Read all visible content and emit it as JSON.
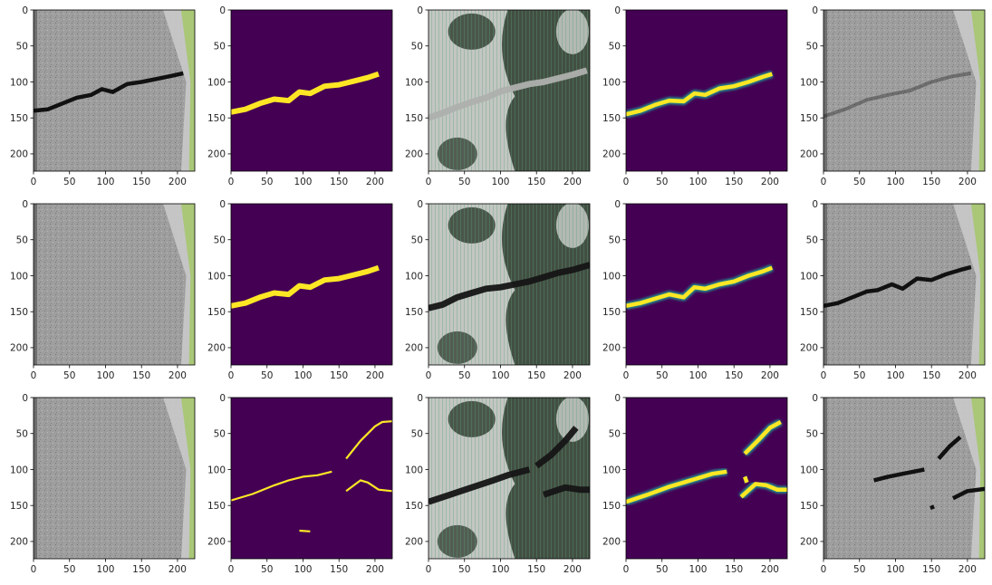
{
  "figure": {
    "background": "#ffffff",
    "colors": {
      "viridis_low": "#440154",
      "viridis_high": "#fde725",
      "viridis_mid": "#21918c",
      "asphalt": "#9a9a9a",
      "grass": "#a9c777",
      "crack": "#111111"
    }
  },
  "chart_data": {
    "type": "image-grid",
    "rows": 3,
    "cols": 5,
    "axis": {
      "xlim": [
        0,
        224
      ],
      "ylim": [
        224,
        0
      ],
      "xticks": [
        "0",
        "50",
        "100",
        "150",
        "200"
      ],
      "yticks": [
        "0",
        "50",
        "100",
        "150",
        "200"
      ],
      "grid": false
    },
    "panels": [
      {
        "row": 0,
        "col": 0,
        "kind": "photo",
        "crack": "dark",
        "path": [
          [
            0,
            140
          ],
          [
            20,
            138
          ],
          [
            40,
            130
          ],
          [
            60,
            122
          ],
          [
            80,
            118
          ],
          [
            95,
            110
          ],
          [
            110,
            114
          ],
          [
            130,
            103
          ],
          [
            150,
            100
          ],
          [
            170,
            96
          ],
          [
            190,
            92
          ],
          [
            208,
            88
          ]
        ]
      },
      {
        "row": 0,
        "col": 1,
        "kind": "mask",
        "style": "solid",
        "path": [
          [
            0,
            142
          ],
          [
            20,
            138
          ],
          [
            40,
            130
          ],
          [
            60,
            124
          ],
          [
            80,
            126
          ],
          [
            95,
            114
          ],
          [
            110,
            116
          ],
          [
            130,
            106
          ],
          [
            150,
            104
          ],
          [
            170,
            99
          ],
          [
            190,
            94
          ],
          [
            205,
            89
          ]
        ]
      },
      {
        "row": 0,
        "col": 2,
        "kind": "generated",
        "crack": "light",
        "path": [
          [
            0,
            150
          ],
          [
            20,
            143
          ],
          [
            40,
            135
          ],
          [
            60,
            128
          ],
          [
            80,
            122
          ],
          [
            100,
            113
          ],
          [
            120,
            108
          ],
          [
            140,
            103
          ],
          [
            160,
            100
          ],
          [
            180,
            95
          ],
          [
            200,
            90
          ],
          [
            220,
            84
          ]
        ]
      },
      {
        "row": 0,
        "col": 3,
        "kind": "mask",
        "style": "soft",
        "path": [
          [
            0,
            145
          ],
          [
            20,
            140
          ],
          [
            40,
            132
          ],
          [
            60,
            126
          ],
          [
            80,
            127
          ],
          [
            95,
            116
          ],
          [
            110,
            118
          ],
          [
            130,
            109
          ],
          [
            150,
            106
          ],
          [
            170,
            100
          ],
          [
            190,
            93
          ],
          [
            203,
            89
          ]
        ]
      },
      {
        "row": 0,
        "col": 4,
        "kind": "photo",
        "crack": "faint",
        "path": [
          [
            0,
            148
          ],
          [
            30,
            138
          ],
          [
            60,
            125
          ],
          [
            90,
            118
          ],
          [
            120,
            112
          ],
          [
            150,
            100
          ],
          [
            180,
            92
          ],
          [
            205,
            88
          ]
        ]
      },
      {
        "row": 1,
        "col": 0,
        "kind": "photo",
        "crack": "none",
        "path": []
      },
      {
        "row": 1,
        "col": 1,
        "kind": "mask",
        "style": "solid",
        "path": [
          [
            0,
            142
          ],
          [
            20,
            138
          ],
          [
            40,
            130
          ],
          [
            60,
            124
          ],
          [
            80,
            126
          ],
          [
            95,
            114
          ],
          [
            110,
            116
          ],
          [
            130,
            106
          ],
          [
            150,
            104
          ],
          [
            170,
            99
          ],
          [
            190,
            94
          ],
          [
            205,
            89
          ]
        ]
      },
      {
        "row": 1,
        "col": 2,
        "kind": "generated",
        "crack": "dark",
        "path": [
          [
            0,
            145
          ],
          [
            20,
            140
          ],
          [
            40,
            130
          ],
          [
            60,
            124
          ],
          [
            80,
            118
          ],
          [
            100,
            116
          ],
          [
            120,
            112
          ],
          [
            140,
            108
          ],
          [
            160,
            102
          ],
          [
            180,
            96
          ],
          [
            200,
            92
          ],
          [
            224,
            85
          ]
        ]
      },
      {
        "row": 1,
        "col": 3,
        "kind": "mask",
        "style": "soft",
        "path": [
          [
            0,
            142
          ],
          [
            20,
            138
          ],
          [
            40,
            132
          ],
          [
            60,
            126
          ],
          [
            80,
            130
          ],
          [
            95,
            116
          ],
          [
            110,
            118
          ],
          [
            130,
            112
          ],
          [
            150,
            108
          ],
          [
            170,
            100
          ],
          [
            190,
            94
          ],
          [
            203,
            89
          ]
        ]
      },
      {
        "row": 1,
        "col": 4,
        "kind": "photo",
        "crack": "dark",
        "path": [
          [
            0,
            142
          ],
          [
            20,
            138
          ],
          [
            40,
            130
          ],
          [
            60,
            122
          ],
          [
            75,
            120
          ],
          [
            95,
            112
          ],
          [
            110,
            118
          ],
          [
            130,
            104
          ],
          [
            150,
            106
          ],
          [
            170,
            98
          ],
          [
            190,
            92
          ],
          [
            205,
            88
          ]
        ]
      },
      {
        "row": 2,
        "col": 0,
        "kind": "photo",
        "crack": "none",
        "path": []
      },
      {
        "row": 2,
        "col": 1,
        "kind": "mask",
        "style": "thin",
        "path": [
          [
            0,
            143
          ],
          [
            30,
            134
          ],
          [
            60,
            122
          ],
          [
            80,
            115
          ],
          [
            100,
            110
          ],
          [
            120,
            108
          ],
          [
            140,
            103
          ]
        ],
        "extra": [
          [
            [
              160,
              85
            ],
            [
              180,
              60
            ],
            [
              200,
              40
            ],
            [
              210,
              34
            ],
            [
              224,
              33
            ]
          ],
          [
            [
              160,
              130
            ],
            [
              180,
              115
            ],
            [
              190,
              118
            ],
            [
              205,
              128
            ],
            [
              224,
              130
            ]
          ],
          [
            [
              95,
              185
            ],
            [
              110,
              186
            ]
          ]
        ]
      },
      {
        "row": 2,
        "col": 2,
        "kind": "generated",
        "crack": "dark",
        "path": [
          [
            0,
            145
          ],
          [
            30,
            135
          ],
          [
            60,
            125
          ],
          [
            90,
            115
          ],
          [
            110,
            108
          ],
          [
            140,
            100
          ]
        ],
        "extra": [
          [
            [
              150,
              95
            ],
            [
              170,
              80
            ],
            [
              190,
              60
            ],
            [
              205,
              42
            ]
          ],
          [
            [
              160,
              135
            ],
            [
              190,
              125
            ],
            [
              210,
              128
            ],
            [
              224,
              128
            ]
          ]
        ]
      },
      {
        "row": 2,
        "col": 3,
        "kind": "mask",
        "style": "soft",
        "path": [
          [
            0,
            145
          ],
          [
            30,
            135
          ],
          [
            60,
            124
          ],
          [
            80,
            118
          ],
          [
            100,
            112
          ],
          [
            120,
            106
          ],
          [
            140,
            103
          ]
        ],
        "extra": [
          [
            [
              165,
              78
            ],
            [
              185,
              58
            ],
            [
              200,
              42
            ],
            [
              215,
              34
            ]
          ],
          [
            [
              160,
              138
            ],
            [
              180,
              120
            ],
            [
              195,
              122
            ],
            [
              210,
              128
            ],
            [
              224,
              128
            ]
          ],
          [
            [
              165,
              110
            ],
            [
              168,
              118
            ]
          ]
        ]
      },
      {
        "row": 2,
        "col": 4,
        "kind": "photo",
        "crack": "dark",
        "path": [
          [
            70,
            115
          ],
          [
            90,
            110
          ],
          [
            110,
            106
          ],
          [
            140,
            100
          ]
        ],
        "extra": [
          [
            [
              160,
              85
            ],
            [
              175,
              68
            ],
            [
              190,
              55
            ]
          ],
          [
            [
              180,
              140
            ],
            [
              200,
              130
            ],
            [
              224,
              127
            ]
          ],
          [
            [
              150,
              150
            ],
            [
              152,
              155
            ]
          ]
        ]
      }
    ]
  }
}
